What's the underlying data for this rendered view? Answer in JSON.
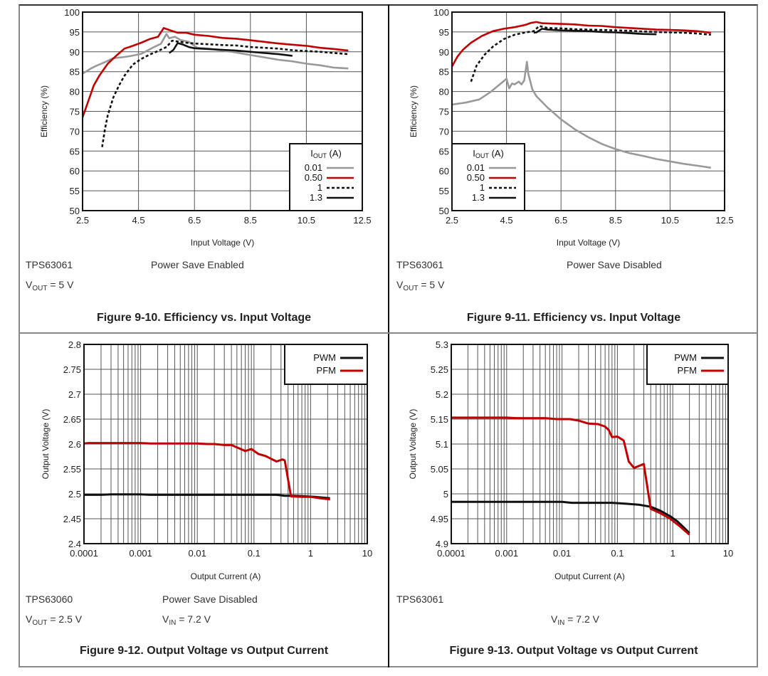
{
  "figures": [
    {
      "caption": "Figure 9-10. Efficiency vs. Input Voltage",
      "device": "TPS63061",
      "condition": "Power Save Enabled",
      "vout_label": "V",
      "vout_sub": "OUT",
      "vout_value": " = 5 V"
    },
    {
      "caption": "Figure 9-11. Efficiency vs. Input Voltage",
      "device": "TPS63061",
      "condition": "Power Save Disabled",
      "vout_label": "V",
      "vout_sub": "OUT",
      "vout_value": " = 5 V"
    },
    {
      "caption": "Figure 9-12. Output Voltage vs Output Current",
      "device": "TPS63060",
      "condition": "Power Save Disabled",
      "vout_label": "V",
      "vout_sub": "OUT",
      "vout_value": " = 2.5 V",
      "vin_label": "V",
      "vin_sub": "IN",
      "vin_value": " = 7.2 V"
    },
    {
      "caption": "Figure 9-13. Output Voltage vs Output Current",
      "device": "TPS63061",
      "vin_label": "V",
      "vin_sub": "IN",
      "vin_value": " = 7.2 V"
    }
  ],
  "chart_data": [
    {
      "type": "line",
      "title": "Efficiency vs. Input Voltage (Power Save Enabled)",
      "xlabel": "Input Voltage (V)",
      "ylabel": "Efficiency (%)",
      "xlim": [
        2.5,
        12.5
      ],
      "ylim": [
        50,
        100
      ],
      "xticks": [
        2.5,
        4.5,
        6.5,
        8.5,
        10.5,
        12.5
      ],
      "xtick_labels": [
        "2.5",
        "4.5",
        "6.5",
        "8.5",
        "10.5",
        "12.5"
      ],
      "yticks": [
        50,
        55,
        60,
        65,
        70,
        75,
        80,
        85,
        90,
        95,
        100
      ],
      "ytick_labels": [
        "50",
        "55",
        "60",
        "65",
        "70",
        "75",
        "80",
        "85",
        "90",
        "95",
        "100"
      ],
      "grid": true,
      "legend": {
        "title": "I",
        "title_sub": "OUT",
        "title_suffix": " (A)",
        "placement": "bottom-right"
      },
      "series": [
        {
          "name": "0.01",
          "color": "#999999",
          "dash": false,
          "x": [
            2.5,
            2.8,
            3.0,
            3.3,
            3.6,
            3.9,
            4.2,
            4.6,
            5.0,
            5.3,
            5.5,
            5.6,
            5.8,
            6.0,
            6.3,
            6.6,
            7.0,
            7.5,
            8.0,
            8.5,
            9.0,
            9.5,
            10.0,
            10.5,
            11.0,
            11.5,
            12.0
          ],
          "y": [
            84.5,
            85.8,
            86.5,
            87.4,
            88.4,
            88.6,
            88.9,
            89.5,
            91.0,
            92.0,
            94.5,
            93.4,
            93.8,
            93.0,
            92.5,
            91.0,
            90.8,
            90.3,
            89.8,
            89.2,
            88.6,
            88.0,
            87.6,
            87.0,
            86.6,
            86.0,
            85.8
          ]
        },
        {
          "name": "0.50",
          "color": "#c00000",
          "dash": false,
          "x": [
            2.5,
            2.7,
            2.9,
            3.1,
            3.4,
            3.7,
            4.0,
            4.3,
            4.6,
            4.9,
            5.2,
            5.4,
            5.6,
            5.9,
            6.2,
            6.5,
            7.0,
            7.5,
            8.0,
            8.5,
            9.0,
            9.5,
            10.0,
            10.5,
            11.0,
            11.5,
            12.0
          ],
          "y": [
            73.5,
            77.5,
            81.5,
            84.0,
            87.0,
            89.0,
            90.8,
            91.5,
            92.3,
            93.2,
            93.8,
            96.0,
            95.5,
            94.8,
            94.8,
            94.3,
            94.0,
            93.5,
            93.3,
            92.9,
            92.5,
            92.1,
            91.8,
            91.5,
            91.0,
            90.7,
            90.3
          ]
        },
        {
          "name": "1",
          "color": "#111111",
          "dash": true,
          "x": [
            3.2,
            3.3,
            3.4,
            3.6,
            3.8,
            4.0,
            4.3,
            4.6,
            4.9,
            5.2,
            5.5,
            5.7,
            5.9,
            6.2,
            6.5,
            7.0,
            7.5,
            8.0,
            8.5,
            9.0,
            9.5,
            10.0,
            10.5,
            11.0,
            11.5,
            12.0
          ],
          "y": [
            66.0,
            70.5,
            74.0,
            78.5,
            81.5,
            84.0,
            86.8,
            88.2,
            89.3,
            90.2,
            91.2,
            92.8,
            92.6,
            92.3,
            92.1,
            91.9,
            91.7,
            91.6,
            91.2,
            91.0,
            90.8,
            90.4,
            90.2,
            90.0,
            89.7,
            89.4
          ]
        },
        {
          "name": "1.3",
          "color": "#111111",
          "dash": false,
          "x": [
            5.6,
            5.75,
            5.9,
            6.1,
            6.3,
            6.5,
            7.0,
            7.5,
            8.0,
            8.5,
            9.0,
            9.5,
            10.0
          ],
          "y": [
            89.7,
            90.5,
            92.2,
            91.8,
            91.2,
            90.9,
            90.7,
            90.5,
            90.3,
            90.0,
            89.7,
            89.4,
            89.0
          ]
        }
      ]
    },
    {
      "type": "line",
      "title": "Efficiency vs. Input Voltage (Power Save Disabled)",
      "xlabel": "Input Voltage (V)",
      "ylabel": "Efficiency (%)",
      "xlim": [
        2.5,
        12.5
      ],
      "ylim": [
        50,
        100
      ],
      "xticks": [
        2.5,
        4.5,
        6.5,
        8.5,
        10.5,
        12.5
      ],
      "xtick_labels": [
        "2.5",
        "4.5",
        "6.5",
        "8.5",
        "10.5",
        "12.5"
      ],
      "yticks": [
        50,
        55,
        60,
        65,
        70,
        75,
        80,
        85,
        90,
        95,
        100
      ],
      "ytick_labels": [
        "50",
        "55",
        "60",
        "65",
        "70",
        "75",
        "80",
        "85",
        "90",
        "95",
        "100"
      ],
      "grid": true,
      "legend": {
        "title": "I",
        "title_sub": "OUT",
        "title_suffix": " (A)",
        "placement": "bottom-left"
      },
      "series": [
        {
          "name": "0.01",
          "color": "#999999",
          "dash": false,
          "x": [
            2.5,
            3.0,
            3.5,
            3.9,
            4.2,
            4.5,
            4.6,
            4.7,
            4.8,
            4.95,
            5.05,
            5.15,
            5.25,
            5.3,
            5.45,
            5.6,
            6.0,
            6.5,
            7.0,
            7.5,
            8.0,
            8.5,
            9.0,
            9.5,
            10.0,
            10.5,
            11.0,
            11.5,
            12.0
          ],
          "y": [
            76.7,
            77.2,
            78.0,
            79.8,
            81.5,
            83.2,
            80.8,
            82.0,
            81.8,
            82.5,
            81.8,
            82.8,
            87.5,
            84.5,
            80.5,
            78.8,
            76.0,
            73.0,
            70.5,
            68.5,
            66.8,
            65.5,
            64.5,
            63.8,
            63.0,
            62.4,
            61.8,
            61.3,
            60.8
          ]
        },
        {
          "name": "0.50",
          "color": "#c00000",
          "dash": false,
          "x": [
            2.5,
            2.7,
            2.9,
            3.2,
            3.6,
            4.0,
            4.4,
            4.8,
            5.2,
            5.4,
            5.6,
            5.8,
            6.2,
            6.6,
            7.0,
            7.5,
            8.0,
            8.5,
            9.0,
            9.5,
            10.0,
            10.5,
            11.0,
            11.5,
            12.0
          ],
          "y": [
            86.3,
            88.8,
            90.5,
            92.3,
            94.0,
            95.2,
            95.8,
            96.2,
            96.8,
            97.3,
            97.5,
            97.2,
            97.1,
            97.0,
            96.9,
            96.6,
            96.5,
            96.2,
            96.0,
            95.8,
            95.6,
            95.5,
            95.4,
            95.2,
            94.8
          ]
        },
        {
          "name": "1",
          "color": "#111111",
          "dash": true,
          "x": [
            3.2,
            3.4,
            3.7,
            4.0,
            4.4,
            4.8,
            5.2,
            5.5,
            5.7,
            6.0,
            6.5,
            7.0,
            7.5,
            8.0,
            8.5,
            9.0,
            9.5,
            10.0,
            10.5,
            11.0,
            11.5,
            12.0
          ],
          "y": [
            82.5,
            86.5,
            89.3,
            91.3,
            93.2,
            94.3,
            94.9,
            95.2,
            96.5,
            96.0,
            95.9,
            95.7,
            95.6,
            95.5,
            95.4,
            95.3,
            95.1,
            95.0,
            94.9,
            94.8,
            94.6,
            94.3
          ]
        },
        {
          "name": "1.3",
          "color": "#111111",
          "dash": false,
          "x": [
            5.5,
            5.6,
            5.8,
            6.0,
            6.5,
            7.0,
            7.5,
            8.0,
            8.5,
            9.0,
            9.5,
            10.0
          ],
          "y": [
            94.8,
            94.9,
            95.8,
            95.6,
            95.4,
            95.3,
            95.2,
            95.0,
            94.9,
            94.7,
            94.5,
            94.4
          ]
        }
      ]
    },
    {
      "type": "line",
      "title": "Output Voltage vs Output Current (VOUT = 2.5 V)",
      "xlabel": "Output Current (A)",
      "ylabel": "Output Voltage (V)",
      "xscale": "log",
      "xlim": [
        0.0001,
        10
      ],
      "ylim": [
        2.4,
        2.8
      ],
      "xticks": [
        0.0001,
        0.001,
        0.01,
        0.1,
        1,
        10
      ],
      "xtick_labels": [
        "0.0001",
        "0.001",
        "0.01",
        "0.1",
        "1",
        "10"
      ],
      "yticks": [
        2.4,
        2.45,
        2.5,
        2.55,
        2.6,
        2.65,
        2.7,
        2.75,
        2.8
      ],
      "ytick_labels": [
        "2.4",
        "2.45",
        "2.5",
        "2.55",
        "2.6",
        "2.65",
        "2.7",
        "2.75",
        "2.8"
      ],
      "grid": true,
      "legend": {
        "placement": "top-right"
      },
      "series": [
        {
          "name": "PWM",
          "color": "#111111",
          "dash": false,
          "x": [
            0.0001,
            0.0002,
            0.0003,
            0.001,
            0.0015,
            0.01,
            0.1,
            0.25,
            0.35,
            0.5,
            0.8,
            1.2,
            2.2
          ],
          "y": [
            2.498,
            2.498,
            2.499,
            2.499,
            2.498,
            2.498,
            2.498,
            2.498,
            2.496,
            2.496,
            2.495,
            2.494,
            2.491
          ]
        },
        {
          "name": "PFM",
          "color": "#c00000",
          "dash": false,
          "x": [
            0.0001,
            0.00012,
            0.0003,
            0.001,
            0.0015,
            0.01,
            0.015,
            0.02,
            0.03,
            0.04,
            0.07,
            0.09,
            0.12,
            0.16,
            0.25,
            0.32,
            0.35,
            0.45,
            0.7,
            1.0,
            1.5,
            2.2
          ],
          "y": [
            2.601,
            2.602,
            2.602,
            2.602,
            2.601,
            2.601,
            2.6,
            2.6,
            2.598,
            2.598,
            2.586,
            2.59,
            2.58,
            2.576,
            2.565,
            2.569,
            2.567,
            2.495,
            2.494,
            2.494,
            2.491,
            2.489
          ]
        }
      ]
    },
    {
      "type": "line",
      "title": "Output Voltage vs Output Current (VOUT = 5 V)",
      "xlabel": "Output Current (A)",
      "ylabel": "Output Voltage (V)",
      "xscale": "log",
      "xlim": [
        0.0001,
        10
      ],
      "ylim": [
        4.9,
        5.3
      ],
      "xticks": [
        0.0001,
        0.001,
        0.01,
        0.1,
        1,
        10
      ],
      "xtick_labels": [
        "0.0001",
        "0.001",
        "0.01",
        "0.1",
        "1",
        "10"
      ],
      "yticks": [
        4.9,
        4.95,
        5.0,
        5.05,
        5.1,
        5.15,
        5.2,
        5.25,
        5.3
      ],
      "ytick_labels": [
        "4.9",
        "4.95",
        "5",
        "5.05",
        "5.1",
        "5.15",
        "5.2",
        "5.25",
        "5.3"
      ],
      "grid": true,
      "legend": {
        "placement": "top-right"
      },
      "series": [
        {
          "name": "PWM",
          "color": "#111111",
          "dash": false,
          "x": [
            0.0001,
            0.001,
            0.01,
            0.015,
            0.03,
            0.08,
            0.15,
            0.25,
            0.4,
            0.6,
            0.9,
            1.2,
            1.6,
            2.0
          ],
          "y": [
            4.984,
            4.984,
            4.984,
            4.982,
            4.982,
            4.982,
            4.98,
            4.978,
            4.974,
            4.966,
            4.955,
            4.945,
            4.932,
            4.921
          ]
        },
        {
          "name": "PFM",
          "color": "#c00000",
          "dash": false,
          "x": [
            0.0001,
            0.001,
            0.0015,
            0.005,
            0.008,
            0.014,
            0.02,
            0.03,
            0.045,
            0.06,
            0.07,
            0.08,
            0.1,
            0.13,
            0.16,
            0.2,
            0.3,
            0.4,
            0.6,
            0.9,
            1.3,
            2.0
          ],
          "y": [
            5.153,
            5.153,
            5.152,
            5.152,
            5.15,
            5.15,
            5.147,
            5.141,
            5.14,
            5.135,
            5.128,
            5.114,
            5.115,
            5.107,
            5.065,
            5.052,
            5.06,
            4.97,
            4.961,
            4.95,
            4.936,
            4.918
          ]
        }
      ]
    }
  ]
}
